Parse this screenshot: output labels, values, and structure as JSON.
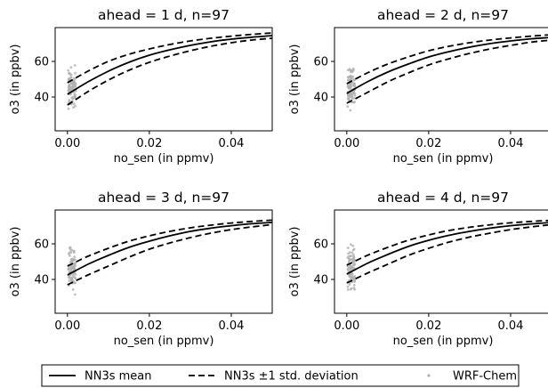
{
  "chart_data": {
    "type": "line",
    "shared": {
      "xlabel": "no_sen (in ppmv)",
      "ylabel": "o3 (in ppbv)",
      "xlim": [
        -0.003,
        0.05
      ],
      "ylim": [
        21,
        79
      ],
      "xticks": [
        0.0,
        0.02,
        0.04
      ],
      "xtick_labels": [
        "0.00",
        "0.02",
        "0.04"
      ],
      "yticks": [
        40,
        60
      ],
      "ytick_labels": [
        "40",
        "60"
      ],
      "grid": false,
      "line_color": "#000000",
      "scatter_color": "#b0b0b0"
    },
    "panels": [
      {
        "title": "ahead = 1 d, n=97",
        "x": [
          0.0,
          0.005,
          0.01,
          0.015,
          0.02,
          0.025,
          0.03,
          0.035,
          0.04,
          0.045,
          0.05
        ],
        "series": [
          {
            "name": "NN3s mean",
            "style": "solid",
            "values": [
              41.5,
              48.5,
              54.5,
              59.5,
              63.5,
              66.5,
              69.0,
              71.0,
              72.5,
              73.6,
              74.5
            ]
          },
          {
            "name": "NN3s ±1 std. deviation",
            "style": "dashed",
            "values": [
              48.0,
              54.5,
              60.0,
              64.0,
              67.0,
              69.5,
              71.5,
              73.0,
              74.2,
              75.2,
              76.0
            ]
          },
          {
            "name": "NN3s ±1 std. deviation",
            "style": "dashed",
            "values": [
              35.5,
              43.0,
              49.5,
              55.0,
              59.5,
              63.0,
              66.0,
              68.5,
              70.5,
              72.0,
              73.0
            ]
          }
        ]
      },
      {
        "title": "ahead = 2 d, n=97",
        "x": [
          0.0,
          0.005,
          0.01,
          0.015,
          0.02,
          0.025,
          0.03,
          0.035,
          0.04,
          0.045,
          0.05
        ],
        "series": [
          {
            "name": "NN3s mean",
            "style": "solid",
            "values": [
              42.0,
              48.5,
              54.0,
              58.5,
              62.5,
              65.5,
              68.0,
              70.0,
              71.5,
              72.7,
              73.5
            ]
          },
          {
            "name": "NN3s ±1 std. deviation",
            "style": "dashed",
            "values": [
              47.5,
              53.5,
              58.5,
              62.5,
              66.0,
              68.5,
              70.5,
              72.0,
              73.2,
              74.2,
              75.0
            ]
          },
          {
            "name": "NN3s ±1 std. deviation",
            "style": "dashed",
            "values": [
              36.5,
              42.5,
              48.5,
              53.5,
              58.0,
              61.5,
              64.5,
              67.0,
              69.0,
              70.8,
              72.0
            ]
          }
        ]
      },
      {
        "title": "ahead = 3 d, n=97",
        "x": [
          0.0,
          0.005,
          0.01,
          0.015,
          0.02,
          0.025,
          0.03,
          0.035,
          0.04,
          0.045,
          0.05
        ],
        "series": [
          {
            "name": "NN3s mean",
            "style": "solid",
            "values": [
              42.5,
              48.5,
              53.5,
              58.0,
              61.5,
              64.5,
              67.0,
              68.8,
              70.2,
              71.3,
              72.0
            ]
          },
          {
            "name": "NN3s ±1 std. deviation",
            "style": "dashed",
            "values": [
              47.5,
              53.0,
              57.5,
              61.5,
              64.5,
              67.0,
              69.0,
              70.5,
              71.7,
              72.6,
              73.3
            ]
          },
          {
            "name": "NN3s ±1 std. deviation",
            "style": "dashed",
            "values": [
              37.0,
              42.5,
              47.5,
              52.5,
              57.0,
              60.5,
              63.5,
              66.0,
              68.0,
              69.5,
              70.8
            ]
          }
        ]
      },
      {
        "title": "ahead = 4 d, n=97",
        "x": [
          0.0,
          0.005,
          0.01,
          0.015,
          0.02,
          0.025,
          0.03,
          0.035,
          0.04,
          0.045,
          0.05
        ],
        "series": [
          {
            "name": "NN3s mean",
            "style": "solid",
            "values": [
              43.0,
              49.0,
              54.0,
              58.5,
              62.0,
              64.8,
              67.0,
              68.8,
              70.2,
              71.2,
              72.0
            ]
          },
          {
            "name": "NN3s ±1 std. deviation",
            "style": "dashed",
            "values": [
              48.0,
              53.5,
              58.0,
              62.0,
              65.0,
              67.5,
              69.3,
              70.7,
              71.8,
              72.6,
              73.2
            ]
          },
          {
            "name": "NN3s ±1 std. deviation",
            "style": "dashed",
            "values": [
              38.0,
              43.5,
              48.5,
              53.5,
              57.5,
              61.0,
              63.8,
              66.0,
              68.0,
              69.5,
              70.8
            ]
          }
        ]
      }
    ],
    "legend": {
      "placement": "bottom",
      "entries": [
        {
          "label": "NN3s mean",
          "style": "solid"
        },
        {
          "label": "NN3s ±1 std. deviation",
          "style": "dashed"
        },
        {
          "label": "WRF-Chem",
          "style": "scatter"
        }
      ]
    }
  }
}
